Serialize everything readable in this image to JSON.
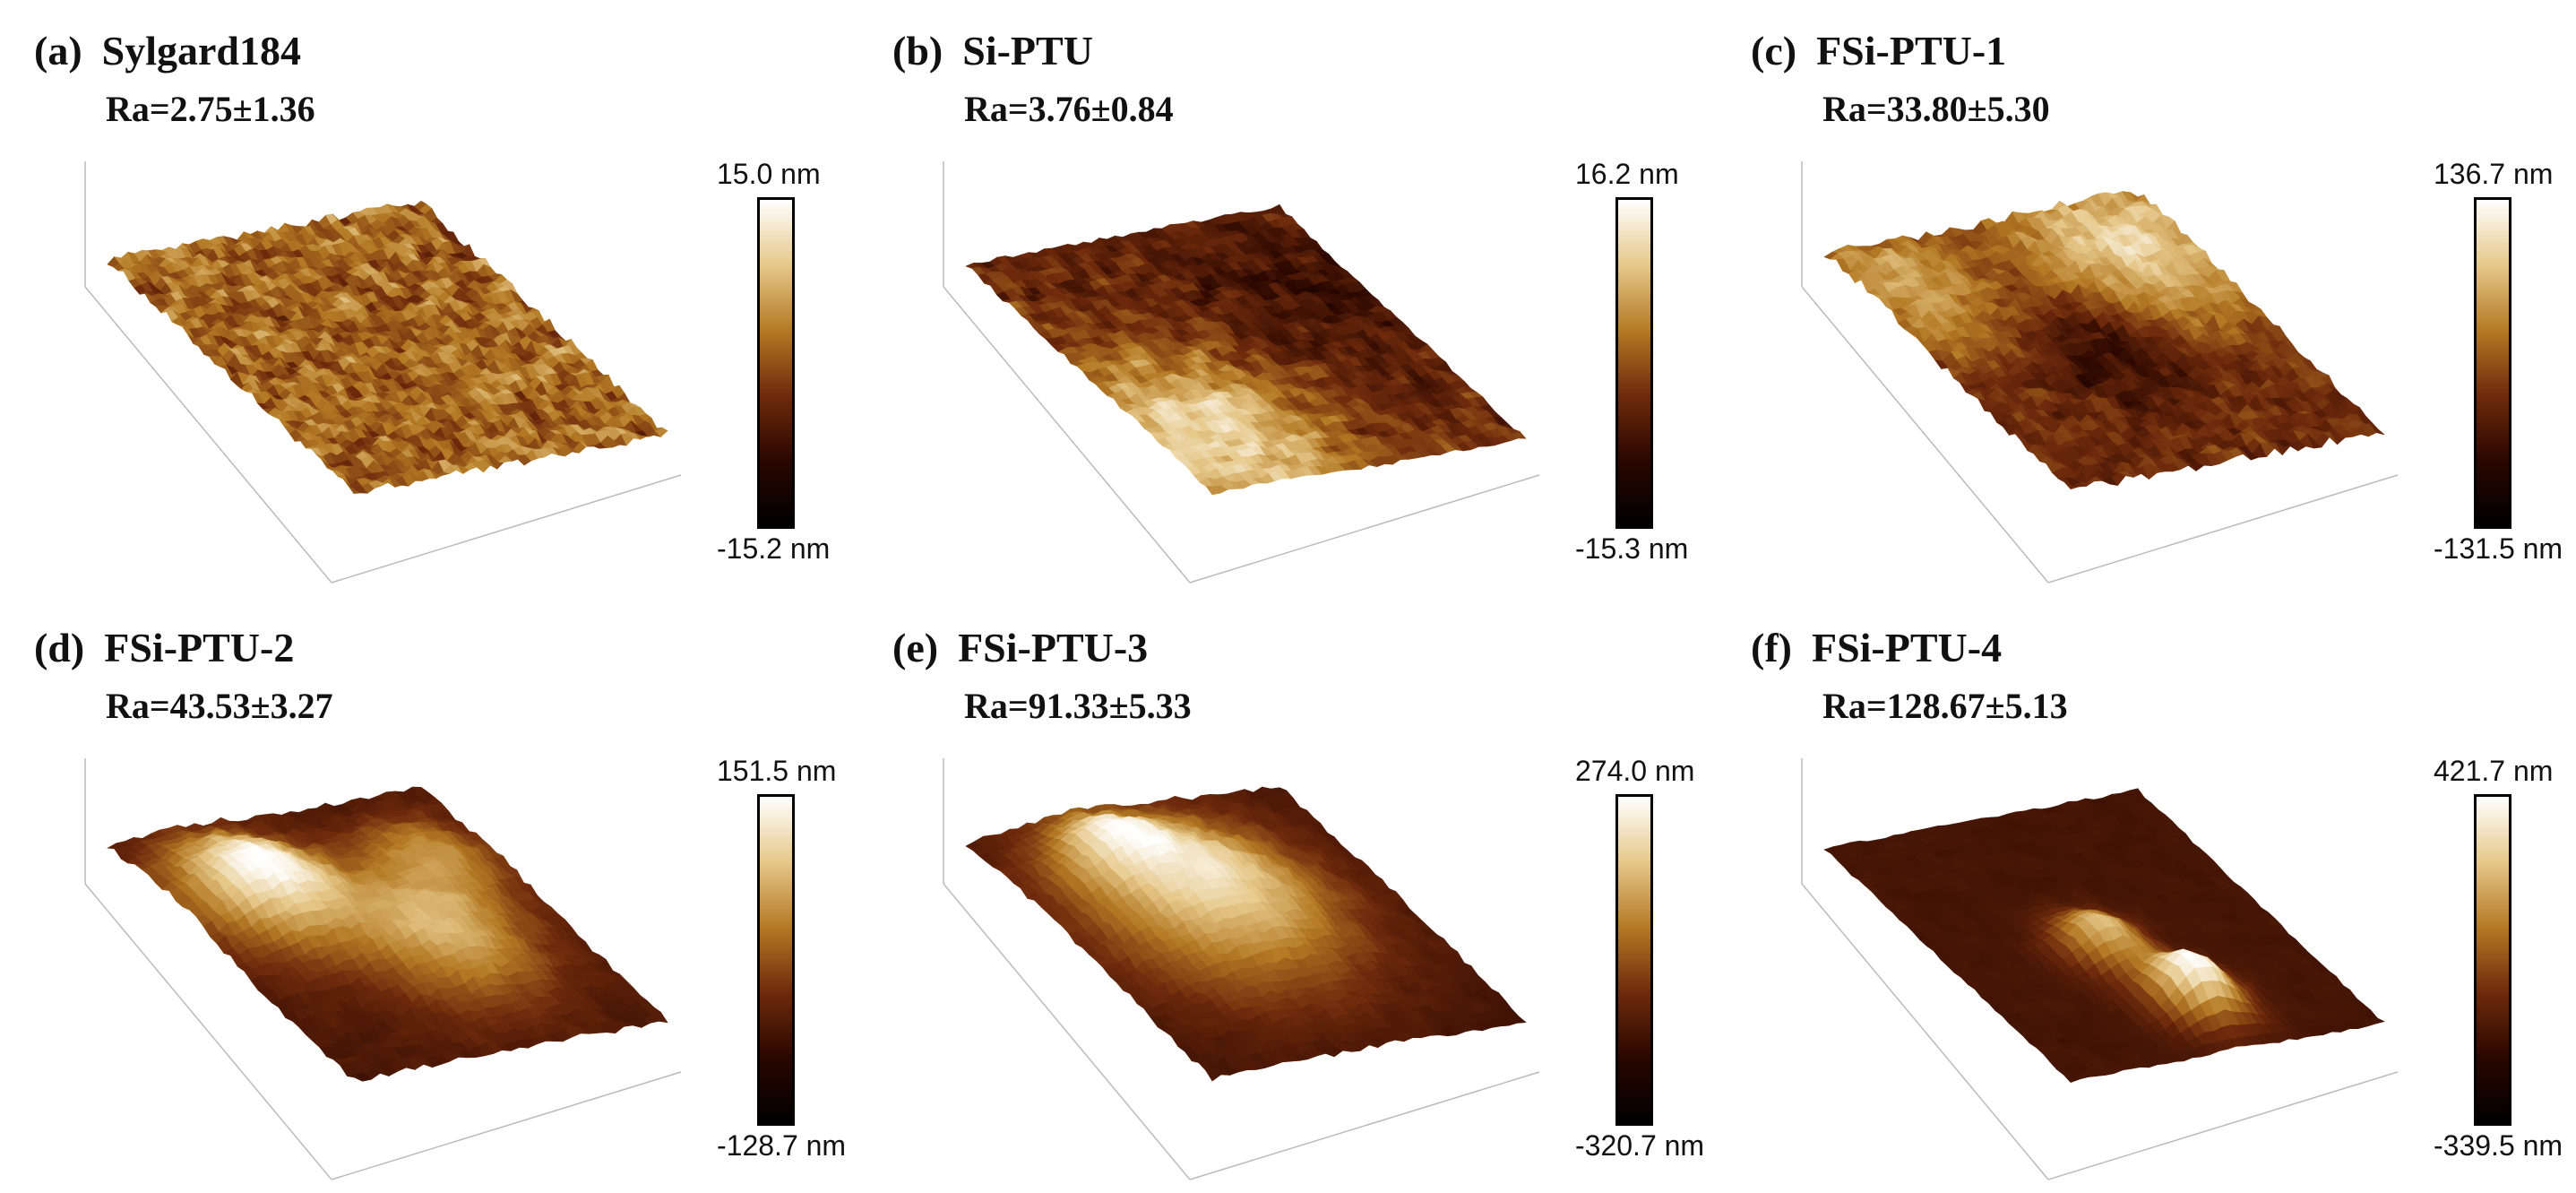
{
  "colors": {
    "colormap": [
      "#ffffff",
      "#e6c88a",
      "#b47a24",
      "#6e2a0c",
      "#2a0700",
      "#000000"
    ],
    "axis": "#bbbbbb",
    "text": "#111111"
  },
  "panels": [
    {
      "letter": "(a)",
      "title": "Sylgard184",
      "ra": "Ra=2.75±1.36",
      "scale_max": "15.0 nm",
      "scale_min": "-15.2 nm",
      "texture": "fine-spiky"
    },
    {
      "letter": "(b)",
      "title": "Si-PTU",
      "ra": "Ra=3.76±0.84",
      "scale_max": "16.2 nm",
      "scale_min": "-15.3 nm",
      "texture": "fine-rough"
    },
    {
      "letter": "(c)",
      "title": "FSi-PTU-1",
      "ra": "Ra=33.80±5.30",
      "scale_max": "136.7 nm",
      "scale_min": "-131.5 nm",
      "texture": "granular"
    },
    {
      "letter": "(d)",
      "title": "FSi-PTU-2",
      "ra": "Ra=43.53±3.27",
      "scale_max": "151.5 nm",
      "scale_min": "-128.7 nm",
      "texture": "hilly"
    },
    {
      "letter": "(e)",
      "title": "FSi-PTU-3",
      "ra": "Ra=91.33±5.33",
      "scale_max": "274.0 nm",
      "scale_min": "-320.7 nm",
      "texture": "mound"
    },
    {
      "letter": "(f)",
      "title": "FSi-PTU-4",
      "ra": "Ra=128.67±5.13",
      "scale_max": "421.7 nm",
      "scale_min": "-339.5 nm",
      "texture": "ridge"
    }
  ]
}
